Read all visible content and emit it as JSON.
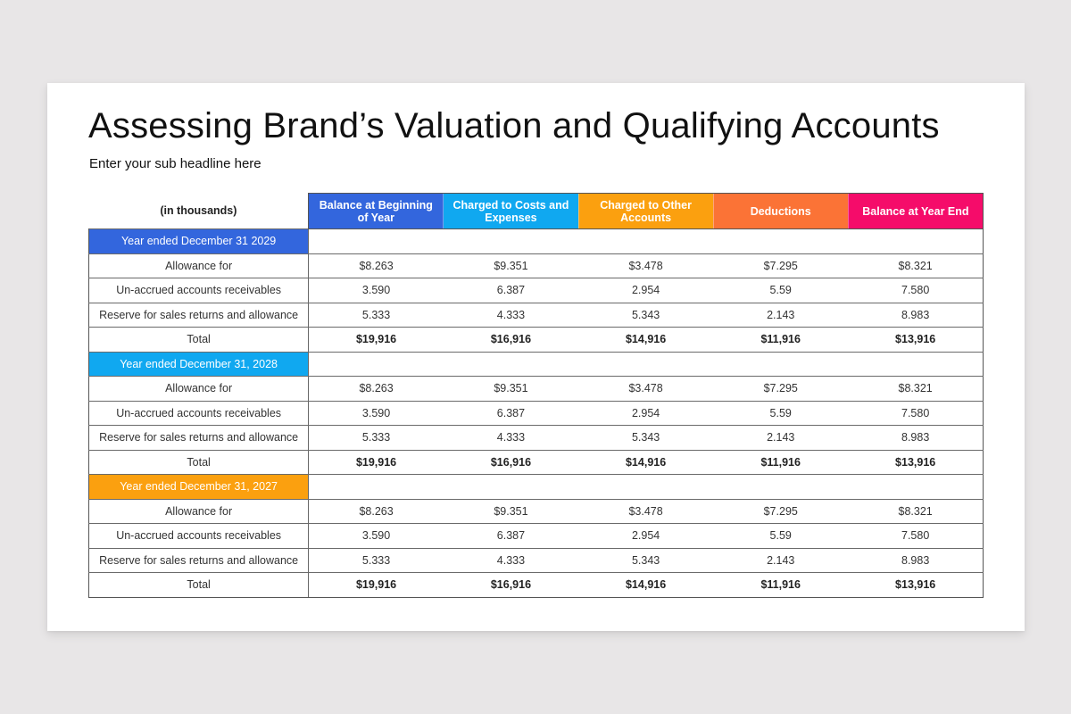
{
  "slide": {
    "title": "Assessing Brand’s Valuation and Qualifying Accounts",
    "subtitle": "Enter your sub headline here"
  },
  "table": {
    "corner_label": "(in thousands)",
    "columns": [
      {
        "label": "Balance at Beginning of Year",
        "color": "#3366dd"
      },
      {
        "label": "Charged to Costs and Expenses",
        "color": "#10a8f0"
      },
      {
        "label": "Charged to Other Accounts",
        "color": "#fba00f"
      },
      {
        "label": "Deductions",
        "color": "#fb7336"
      },
      {
        "label": "Balance at Year End",
        "color": "#f50c6a"
      }
    ],
    "sections": [
      {
        "year_label": "Year ended December 31 2029",
        "color": "#3366dd",
        "rows": [
          {
            "label": "Allowance for",
            "values": [
              "$8.263",
              "$9.351",
              "$3.478",
              "$7.295",
              "$8.321"
            ]
          },
          {
            "label": "Un-accrued accounts receivables",
            "values": [
              "3.590",
              "6.387",
              "2.954",
              "5.59",
              "7.580"
            ]
          },
          {
            "label": "Reserve for sales returns and allowance",
            "values": [
              "5.333",
              "4.333",
              "5.343",
              "2.143",
              "8.983"
            ]
          },
          {
            "label": "Total",
            "values": [
              "$19,916",
              "$16,916",
              "$14,916",
              "$11,916",
              "$13,916"
            ]
          }
        ]
      },
      {
        "year_label": "Year ended December 31, 2028",
        "color": "#10a8f0",
        "rows": [
          {
            "label": "Allowance for",
            "values": [
              "$8.263",
              "$9.351",
              "$3.478",
              "$7.295",
              "$8.321"
            ]
          },
          {
            "label": "Un-accrued accounts receivables",
            "values": [
              "3.590",
              "6.387",
              "2.954",
              "5.59",
              "7.580"
            ]
          },
          {
            "label": "Reserve for sales returns and allowance",
            "values": [
              "5.333",
              "4.333",
              "5.343",
              "2.143",
              "8.983"
            ]
          },
          {
            "label": "Total",
            "values": [
              "$19,916",
              "$16,916",
              "$14,916",
              "$11,916",
              "$13,916"
            ]
          }
        ]
      },
      {
        "year_label": "Year ended December 31, 2027",
        "color": "#fba00f",
        "rows": [
          {
            "label": "Allowance for",
            "values": [
              "$8.263",
              "$9.351",
              "$3.478",
              "$7.295",
              "$8.321"
            ]
          },
          {
            "label": "Un-accrued accounts receivables",
            "values": [
              "3.590",
              "6.387",
              "2.954",
              "5.59",
              "7.580"
            ]
          },
          {
            "label": "Reserve for sales returns and allowance",
            "values": [
              "5.333",
              "4.333",
              "5.343",
              "2.143",
              "8.983"
            ]
          },
          {
            "label": "Total",
            "values": [
              "$19,916",
              "$16,916",
              "$14,916",
              "$11,916",
              "$13,916"
            ]
          }
        ]
      }
    ]
  }
}
